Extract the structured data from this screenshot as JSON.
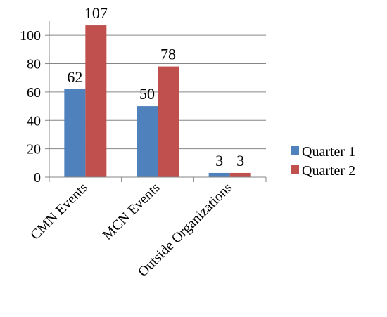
{
  "chart_data": {
    "type": "bar",
    "title": "",
    "xlabel": "",
    "ylabel": "",
    "categories": [
      "CMN Events",
      "MCN Events",
      "Outside Organizations"
    ],
    "series": [
      {
        "name": "Quarter 1",
        "values": [
          62,
          50,
          3
        ],
        "color": "#4F81BD"
      },
      {
        "name": "Quarter 2",
        "values": [
          107,
          78,
          3
        ],
        "color": "#C0504D"
      }
    ],
    "ylim": [
      0,
      110
    ],
    "yticks": [
      0,
      20,
      40,
      60,
      80,
      100
    ],
    "grid": true,
    "legend_position": "right"
  }
}
